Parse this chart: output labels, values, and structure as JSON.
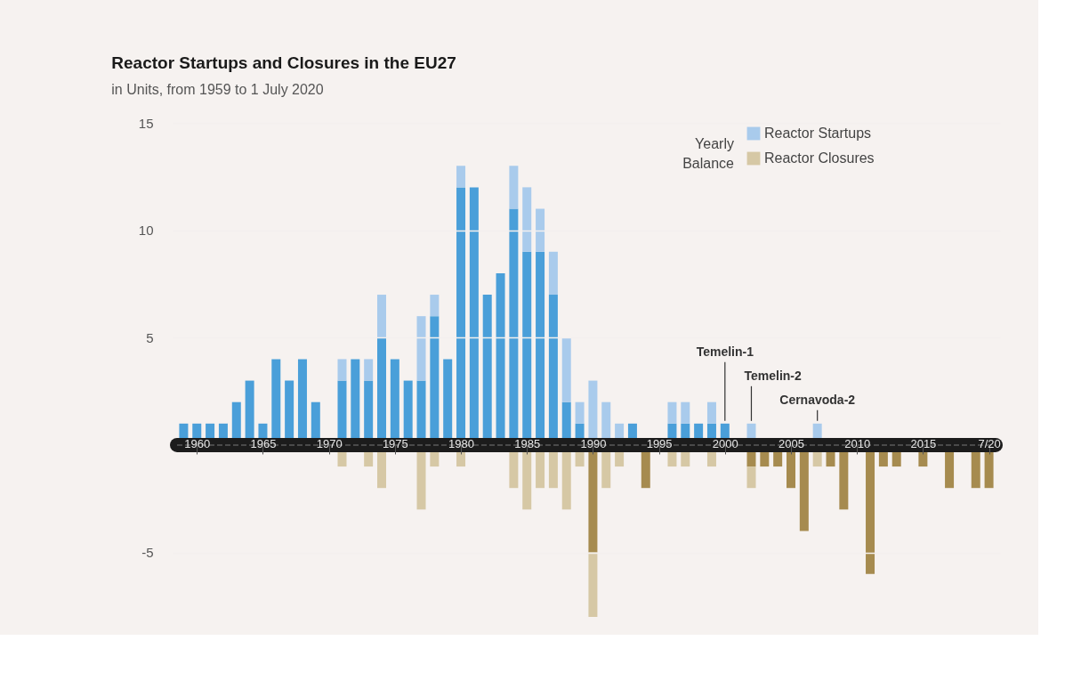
{
  "chart_data": {
    "type": "bar",
    "title": "Reactor Startups and Closures in the EU27",
    "subtitle": "in Units, from 1959 to 1 July 2020",
    "x": [
      1959,
      1960,
      1961,
      1962,
      1963,
      1964,
      1965,
      1966,
      1967,
      1968,
      1969,
      1970,
      1971,
      1972,
      1973,
      1974,
      1975,
      1976,
      1977,
      1978,
      1979,
      1980,
      1981,
      1982,
      1983,
      1984,
      1985,
      1986,
      1987,
      1988,
      1989,
      1990,
      1991,
      1992,
      1993,
      1994,
      1995,
      1996,
      1997,
      1998,
      1999,
      2000,
      2001,
      2002,
      2003,
      2004,
      2005,
      2006,
      2007,
      2008,
      2009,
      2010,
      2011,
      2012,
      2013,
      2014,
      2015,
      2016,
      2017,
      2018,
      2019,
      2020
    ],
    "stacked": true,
    "series": [
      {
        "color": "#4a9fd9",
        "values": [
          1,
          1,
          1,
          1,
          2,
          3,
          1,
          4,
          3,
          4,
          2,
          null,
          3,
          4,
          3,
          5,
          4,
          3,
          3,
          6,
          4,
          12,
          12,
          7,
          8,
          11,
          9,
          9,
          7,
          2,
          1,
          null,
          null,
          null,
          1,
          null,
          null,
          1,
          1,
          1,
          1,
          1,
          null,
          null,
          null,
          null,
          null,
          null,
          null,
          null,
          null,
          null,
          null,
          null,
          null,
          null,
          null,
          null,
          null,
          null,
          null,
          null
        ]
      },
      {
        "name": "Reactor Startups",
        "color": "#a9cbec",
        "values": [
          null,
          null,
          null,
          null,
          null,
          null,
          null,
          null,
          null,
          null,
          null,
          null,
          1,
          null,
          1,
          2,
          null,
          null,
          3,
          1,
          null,
          1,
          null,
          null,
          null,
          2,
          3,
          2,
          2,
          3,
          1,
          3,
          2,
          1,
          null,
          null,
          null,
          1,
          1,
          null,
          1,
          null,
          null,
          1,
          null,
          null,
          null,
          null,
          1,
          null,
          null,
          null,
          null,
          null,
          null,
          null,
          null,
          null,
          null,
          null,
          null,
          null
        ]
      },
      {
        "color": "#a68b4f",
        "values": [
          null,
          null,
          null,
          null,
          null,
          null,
          null,
          null,
          null,
          null,
          null,
          null,
          null,
          null,
          null,
          null,
          null,
          null,
          null,
          null,
          null,
          null,
          null,
          null,
          null,
          null,
          null,
          null,
          null,
          null,
          null,
          -5,
          null,
          null,
          null,
          -2,
          null,
          null,
          null,
          null,
          null,
          null,
          null,
          -1,
          -1,
          -1,
          -2,
          -4,
          null,
          -1,
          -3,
          null,
          -6,
          -1,
          -1,
          null,
          -1,
          null,
          -2,
          null,
          -2,
          -2
        ]
      },
      {
        "name": "Reactor Closures",
        "color": "#d6c8a5",
        "values": [
          null,
          null,
          null,
          null,
          null,
          null,
          null,
          null,
          null,
          null,
          null,
          null,
          -1,
          null,
          -1,
          -2,
          null,
          null,
          -3,
          -1,
          null,
          -1,
          null,
          null,
          null,
          -2,
          -3,
          -2,
          -2,
          -3,
          -1,
          -3,
          -2,
          -1,
          null,
          null,
          null,
          -1,
          -1,
          null,
          -1,
          null,
          null,
          -1,
          null,
          null,
          null,
          null,
          -1,
          null,
          null,
          null,
          null,
          null,
          null,
          null,
          null,
          null,
          null,
          null,
          null,
          null
        ]
      }
    ],
    "xlim": [
      1958.5,
      2020.5
    ],
    "xticks": [
      1960,
      1965,
      1970,
      1975,
      1980,
      1985,
      1990,
      1995,
      2000,
      2005,
      2010,
      2015,
      {
        "value": 2020,
        "label": "7/20"
      }
    ],
    "ylim": [
      -8,
      15
    ],
    "yticks": [
      -5,
      5,
      10,
      15
    ],
    "grid": "y",
    "legend": "top right",
    "ref_lines": [
      {
        "axis": "y",
        "value": 0,
        "color": "#5a5a5a"
      }
    ],
    "annotations": [
      "Yearly Balance",
      {
        "text": "Temelin-1",
        "x": 2000,
        "y": 1
      },
      {
        "text": "Temelin-2",
        "x": 2002,
        "y": 1
      },
      {
        "text": "Cernavoda-2",
        "x": 2007,
        "y": 1
      }
    ]
  }
}
